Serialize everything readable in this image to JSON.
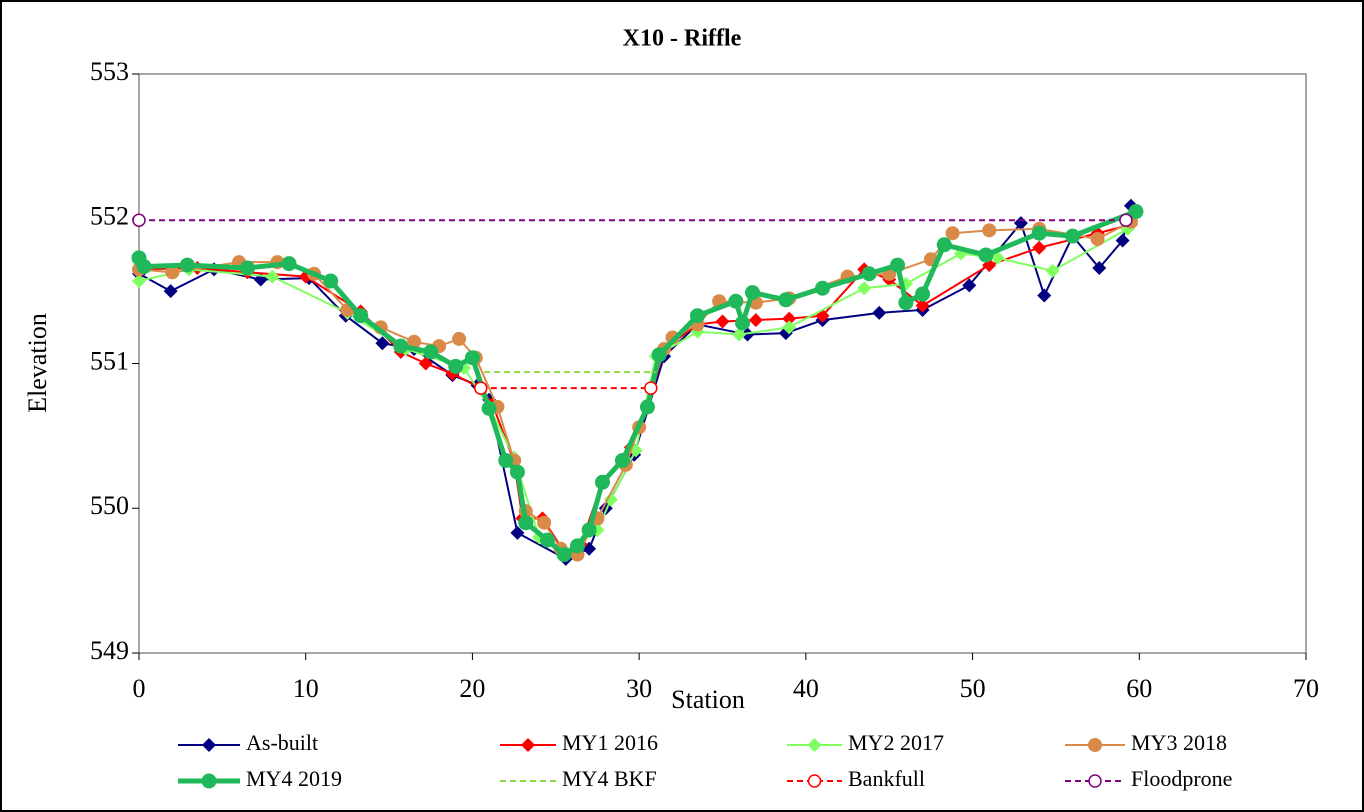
{
  "chart_data": {
    "type": "line",
    "title": "X10 - Riffle",
    "x_label": "Station",
    "y_label": "Elevation",
    "xlim": [
      0,
      70
    ],
    "ylim": [
      549,
      553
    ],
    "xticks": [
      0,
      10,
      20,
      30,
      40,
      50,
      60,
      70
    ],
    "yticks": [
      549,
      550,
      551,
      552,
      553
    ],
    "legend": "bottom",
    "series": [
      {
        "name": "As-built",
        "color": "#000080",
        "marker": "diamond",
        "dash": false,
        "width": 2,
        "x": [
          0,
          1.9,
          4.5,
          7.3,
          10.2,
          12.4,
          14.6,
          16.5,
          18.8,
          20.3,
          21,
          22.7,
          25.6,
          27,
          28,
          29.7,
          31.5,
          33.5,
          36.5,
          38.8,
          41,
          44.4,
          47,
          49.8,
          52.9,
          54.3,
          56,
          57.6,
          59,
          59.5
        ],
        "values": [
          551.62,
          551.5,
          551.65,
          551.58,
          551.59,
          551.33,
          551.14,
          551.1,
          550.92,
          550.85,
          550.75,
          549.83,
          549.65,
          549.72,
          550.0,
          550.37,
          551.05,
          551.27,
          551.2,
          551.21,
          551.3,
          551.35,
          551.37,
          551.54,
          551.97,
          551.47,
          551.88,
          551.66,
          551.85,
          552.09
        ]
      },
      {
        "name": "MY1 2016",
        "color": "#ff0000",
        "marker": "diamond",
        "dash": false,
        "width": 2,
        "x": [
          0,
          3.5,
          6.5,
          10,
          13.3,
          15.7,
          17.2,
          18.8,
          20.5,
          21.2,
          22.5,
          23,
          24.2,
          25.5,
          26.5,
          27.8,
          29.5,
          30.5,
          31.5,
          33.5,
          35,
          37,
          39,
          41,
          43.5,
          45,
          47,
          51,
          54,
          57.5,
          59.5
        ],
        "values": [
          551.65,
          551.66,
          551.63,
          551.6,
          551.36,
          551.08,
          551.0,
          550.93,
          550.83,
          550.72,
          550.32,
          549.93,
          549.93,
          549.7,
          549.75,
          550.18,
          550.42,
          550.7,
          551.1,
          551.27,
          551.29,
          551.3,
          551.31,
          551.33,
          551.65,
          551.58,
          551.4,
          551.68,
          551.8,
          551.9,
          551.96
        ]
      },
      {
        "name": "MY2 2017",
        "color": "#80ff60",
        "marker": "diamond",
        "dash": false,
        "width": 2,
        "x": [
          0,
          3,
          8,
          12.5,
          16,
          19.5,
          21,
          22.5,
          24,
          25.5,
          27.5,
          28.3,
          29.8,
          31,
          33.5,
          36,
          39,
          43.5,
          46,
          49.3,
          51.5,
          54.8,
          59.3
        ],
        "values": [
          551.57,
          551.65,
          551.6,
          551.35,
          551.1,
          550.97,
          550.7,
          550.35,
          549.8,
          549.7,
          549.85,
          550.06,
          550.4,
          551.05,
          551.22,
          551.2,
          551.25,
          551.52,
          551.55,
          551.76,
          551.73,
          551.64,
          551.93
        ]
      },
      {
        "name": "MY3 2018",
        "color": "#d98a48",
        "marker": "circle",
        "dash": false,
        "width": 2,
        "x": [
          0,
          2,
          6,
          8.3,
          10.5,
          12.5,
          14.5,
          16.5,
          18,
          19.2,
          20.2,
          21.5,
          22.5,
          23.2,
          24.3,
          25.3,
          26.3,
          27.5,
          29.2,
          30,
          31.5,
          32,
          33.5,
          34.8,
          37,
          39,
          42.5,
          45,
          47.5,
          48.8,
          51,
          54,
          57.5,
          59.5
        ],
        "values": [
          551.65,
          551.63,
          551.7,
          551.7,
          551.62,
          551.37,
          551.25,
          551.15,
          551.12,
          551.17,
          551.04,
          550.7,
          550.33,
          549.98,
          549.9,
          549.72,
          549.68,
          549.93,
          550.3,
          550.56,
          551.1,
          551.18,
          551.27,
          551.43,
          551.42,
          551.45,
          551.6,
          551.62,
          551.72,
          551.9,
          551.92,
          551.93,
          551.86,
          551.98
        ]
      },
      {
        "name": "MY4 2019",
        "color": "#1fb85a",
        "marker": "circle",
        "dash": false,
        "width": 5,
        "x": [
          0,
          0.3,
          2.9,
          6.5,
          9,
          11.5,
          13.3,
          15.7,
          17.5,
          19,
          20,
          21,
          22,
          22.7,
          23.2,
          24.5,
          25.5,
          26.3,
          27,
          27.8,
          29,
          30.5,
          31.2,
          33.5,
          35.8,
          36.2,
          36.8,
          38.8,
          41,
          43.8,
          45.5,
          46,
          47,
          48.3,
          50.8,
          54,
          56,
          59.8
        ],
        "values": [
          551.73,
          551.67,
          551.68,
          551.66,
          551.69,
          551.57,
          551.33,
          551.12,
          551.08,
          550.98,
          551.04,
          550.69,
          550.33,
          550.25,
          549.9,
          549.78,
          549.68,
          549.74,
          549.85,
          550.18,
          550.33,
          550.7,
          551.06,
          551.33,
          551.43,
          551.28,
          551.49,
          551.44,
          551.52,
          551.62,
          551.68,
          551.42,
          551.48,
          551.82,
          551.75,
          551.9,
          551.88,
          552.05
        ]
      },
      {
        "name": "MY4 BKF",
        "color": "#8fd840",
        "marker": "none",
        "dash": true,
        "width": 2,
        "x": [
          20.7,
          31
        ],
        "values": [
          550.94,
          550.94
        ]
      },
      {
        "name": "Bankfull",
        "color": "#ff0000",
        "marker": "open-circle",
        "dash": true,
        "width": 2,
        "x": [
          20.5,
          30.7
        ],
        "values": [
          550.83,
          550.83
        ]
      },
      {
        "name": "Floodprone",
        "color": "#800080",
        "marker": "open-circle",
        "dash": true,
        "width": 2,
        "x": [
          0,
          59.2
        ],
        "values": [
          551.99,
          551.99
        ]
      }
    ]
  }
}
